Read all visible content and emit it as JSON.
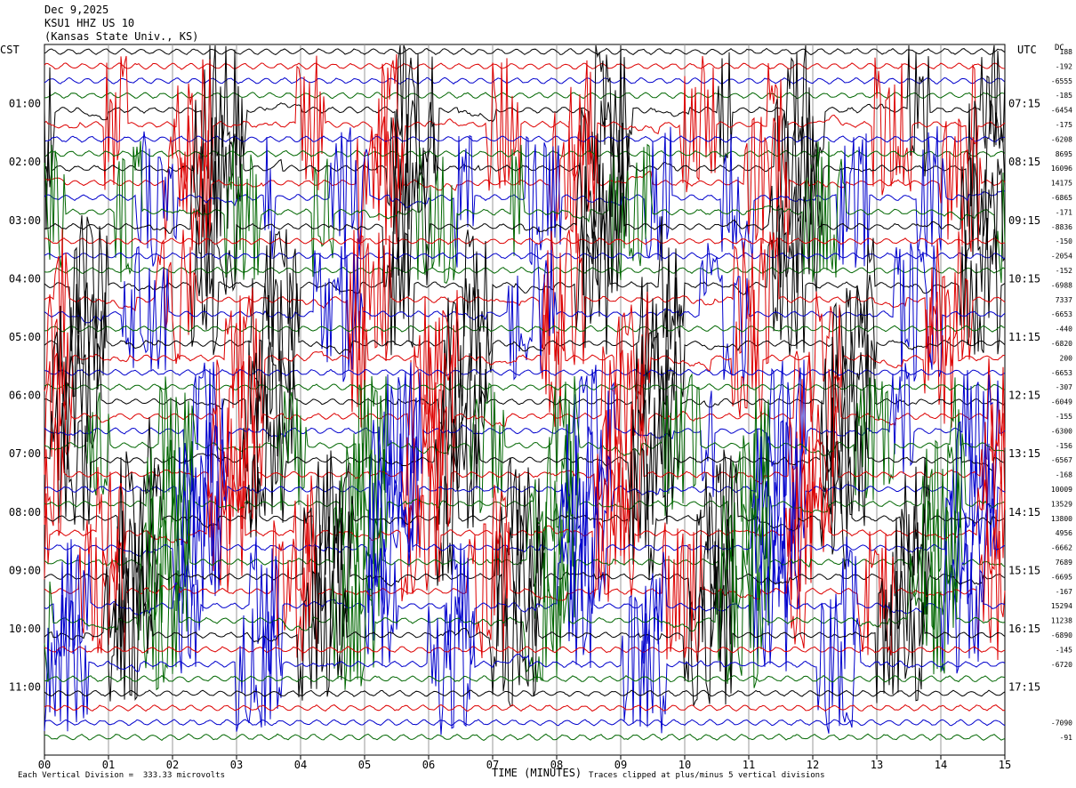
{
  "header": {
    "date": "Dec 9,2025",
    "station": "KSU1 HHZ US 10",
    "location": "(Kansas State Univ., KS)"
  },
  "corner_labels": {
    "left_tz": "CST",
    "right_tz": "UTC",
    "dc": "DC"
  },
  "footer": {
    "xlabel": "TIME (MINUTES)",
    "scale_note": "Each Vertical Division =  333.33 microvolts",
    "clip_note": "Traces clipped at plus/minus 5 vertical divisions"
  },
  "chart_data": {
    "type": "line",
    "x_ticks": [
      "00",
      "01",
      "02",
      "03",
      "04",
      "05",
      "06",
      "07",
      "08",
      "09",
      "10",
      "11",
      "12",
      "13",
      "14",
      "15"
    ],
    "xlim": [
      0,
      15
    ],
    "left_hour_labels": [
      "01:00",
      "02:00",
      "03:00",
      "04:00",
      "05:00",
      "06:00",
      "07:00",
      "08:00",
      "09:00",
      "10:00",
      "11:00"
    ],
    "right_hour_labels": [
      "07:15",
      "08:15",
      "09:15",
      "10:15",
      "11:15",
      "12:15",
      "13:15",
      "14:15",
      "15:15",
      "16:15",
      "17:15"
    ],
    "trace_count": 48,
    "trace_colors": [
      "#000000",
      "#dd0000",
      "#0000cc",
      "#006600"
    ],
    "grid": "vertical-minute-lines",
    "dc_offsets": [
      "188",
      "-192",
      "-6555",
      "-185",
      "-6454",
      "-175",
      "-6208",
      "8695",
      "16096",
      "14175",
      "-6865",
      "-171",
      "-8836",
      "-150",
      "-2054",
      "-152",
      "-6988",
      "7337",
      "-6653",
      "-440",
      "-6820",
      "200",
      "-6653",
      "-307",
      "-6049",
      "-155",
      "-6300",
      "-156",
      "-6567",
      "-168",
      "10009",
      "13529",
      "13800",
      "4956",
      "-6662",
      "7689",
      "-6695",
      "-167",
      "15294",
      "11238",
      "-6890",
      "-145",
      "-6720",
      "",
      "",
      "",
      "-7090",
      "-91"
    ],
    "clipped_traces": [
      4,
      5,
      8,
      9,
      10,
      11,
      12,
      16,
      17,
      18,
      20,
      21,
      24,
      25,
      26,
      27,
      28,
      29,
      30,
      31,
      32,
      33,
      34,
      35,
      36,
      37,
      38,
      39,
      40,
      42
    ]
  }
}
